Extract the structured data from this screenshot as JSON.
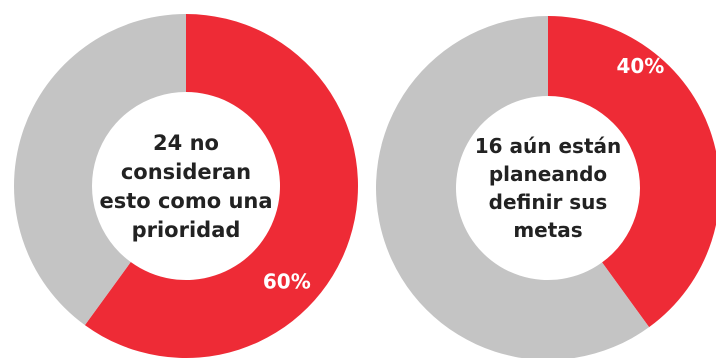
{
  "chart_data": [
    {
      "type": "pie",
      "style": "donut",
      "center_text": "24 no consideran esto como una prioridad",
      "center_lines": [
        "24 no",
        "consideran",
        "esto como una",
        "prioridad"
      ],
      "slices": [
        {
          "label": "60%",
          "value": 60,
          "color": "#ee2b36"
        },
        {
          "label": "",
          "value": 40,
          "color": "#c4c4c4"
        }
      ]
    },
    {
      "type": "pie",
      "style": "donut",
      "center_text": "16 aún están planeando definir sus metas",
      "center_lines": [
        "16 aún están",
        "planeando",
        "definir sus",
        "metas"
      ],
      "slices": [
        {
          "label": "40%",
          "value": 40,
          "color": "#ee2b36"
        },
        {
          "label": "",
          "value": 60,
          "color": "#c4c4c4"
        }
      ]
    }
  ]
}
